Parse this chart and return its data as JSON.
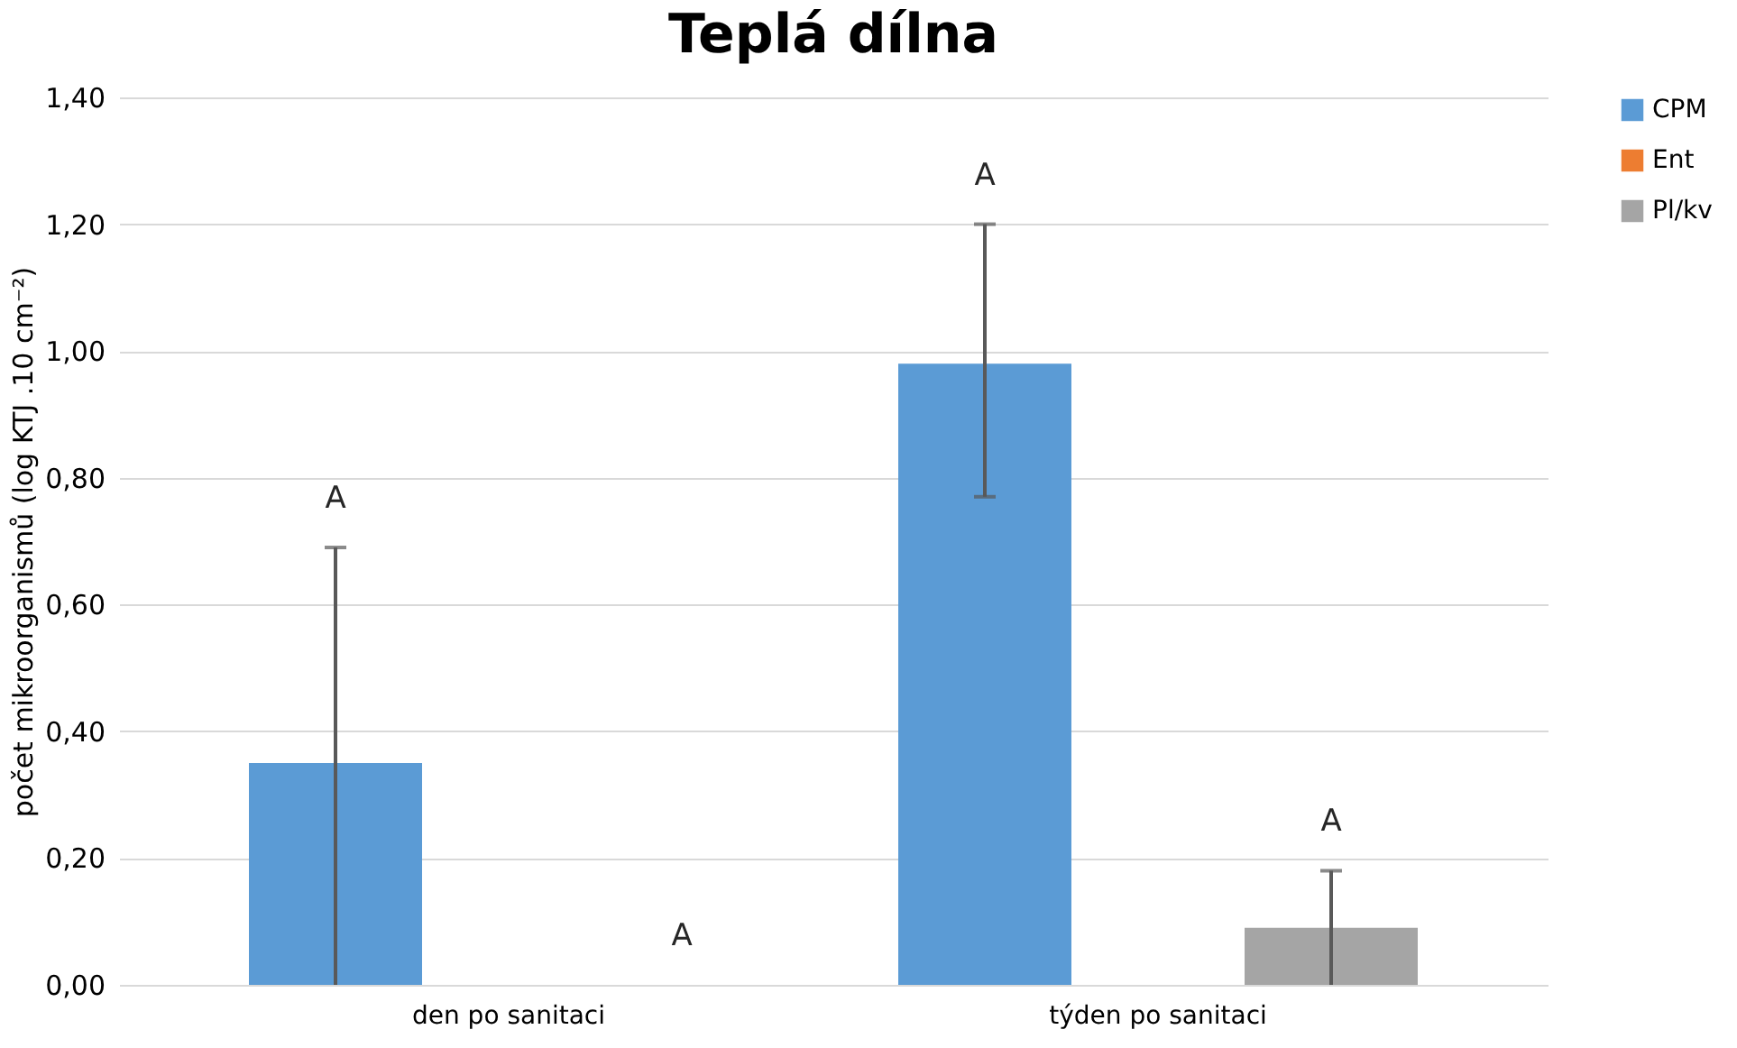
{
  "chart_data": {
    "type": "bar",
    "title": "Teplá dílna",
    "ylabel": "počet mikroorganismů (log  KTJ .10 cm⁻²)",
    "categories": [
      "den po sanitaci",
      "týden po sanitaci"
    ],
    "series": [
      {
        "name": "CPM",
        "color": "#5b9bd5",
        "values": [
          0.35,
          0.98
        ],
        "errors": [
          [
            0,
            0.69
          ],
          [
            0.77,
            1.2
          ]
        ]
      },
      {
        "name": "Ent",
        "color": "#ed7d31",
        "values": [
          0,
          0
        ],
        "errors": [
          null,
          null
        ]
      },
      {
        "name": "Pl/kv",
        "color": "#a5a5a5",
        "values": [
          0,
          0.09
        ],
        "errors": [
          null,
          [
            0,
            0.18
          ]
        ]
      }
    ],
    "ylim": [
      0,
      1.4
    ],
    "yticks": [
      {
        "value": 0,
        "label": "0,00"
      },
      {
        "value": 0.2,
        "label": "0,20"
      },
      {
        "value": 0.4,
        "label": "0,40"
      },
      {
        "value": 0.6,
        "label": "0,60"
      },
      {
        "value": 0.8,
        "label": "0,80"
      },
      {
        "value": 1.0,
        "label": "1,00"
      },
      {
        "value": 1.2,
        "label": "1,20"
      },
      {
        "value": 1.4,
        "label": "1,40"
      }
    ],
    "grid": "y",
    "legend": "right",
    "annotations": [
      "A",
      "A",
      "A",
      "A"
    ]
  }
}
